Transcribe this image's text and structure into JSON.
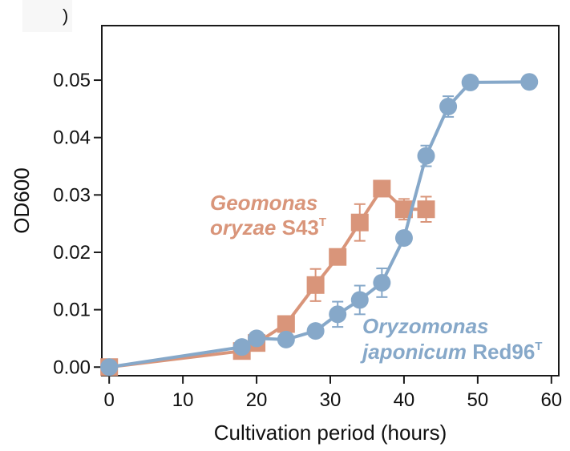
{
  "panel_label": ")",
  "chart_data": {
    "type": "line",
    "title": "",
    "xlabel": "Cultivation period (hours)",
    "ylabel": "OD600",
    "xlim": [
      -1,
      61
    ],
    "ylim": [
      -0.0015,
      0.0595
    ],
    "xticks": [
      0,
      10,
      20,
      30,
      40,
      50,
      60
    ],
    "xtick_labels": [
      "0",
      "10",
      "20",
      "30",
      "40",
      "50",
      "60"
    ],
    "yticks": [
      0.0,
      0.01,
      0.02,
      0.03,
      0.04,
      0.05
    ],
    "ytick_labels": [
      "0.00",
      "0.01",
      "0.02",
      "0.03",
      "0.04",
      "0.05"
    ],
    "grid": false,
    "series": [
      {
        "name": "Geomonas oryzae S43T",
        "label_lines": [
          {
            "italic": "Geomonas",
            "upright": "",
            "sup": ""
          },
          {
            "italic": "oryzae",
            "upright": "S43",
            "sup": "T"
          }
        ],
        "label_placement": "center-left",
        "color": "#d9957a",
        "marker": "square",
        "x": [
          0,
          18,
          20,
          24,
          28,
          31,
          34,
          37,
          40,
          43
        ],
        "y": [
          0.0,
          0.0028,
          0.0042,
          0.0075,
          0.0143,
          0.0192,
          0.0252,
          0.0311,
          0.0275,
          0.0275
        ],
        "error": [
          0.0,
          0.0,
          0.0,
          0.0,
          0.0028,
          0.0,
          0.0032,
          0.0,
          0.0018,
          0.0022
        ]
      },
      {
        "name": "Oryzomonas japonicum Red96T",
        "label_lines": [
          {
            "italic": "Oryzomonas",
            "upright": "",
            "sup": ""
          },
          {
            "italic": "japonicum",
            "upright": "Red96",
            "sup": "T"
          }
        ],
        "label_placement": "lower-right",
        "color": "#86a8c9",
        "marker": "circle",
        "x": [
          0,
          18,
          20,
          24,
          28,
          31,
          34,
          37,
          40,
          43,
          46,
          49,
          57
        ],
        "y": [
          0.0,
          0.0035,
          0.005,
          0.0048,
          0.0063,
          0.0092,
          0.0117,
          0.0147,
          0.0225,
          0.0368,
          0.0454,
          0.0496,
          0.0497
        ],
        "error": [
          0.0,
          0.0,
          0.0,
          0.0,
          0.0,
          0.0022,
          0.0025,
          0.0025,
          0.0,
          0.0018,
          0.0018,
          0.0,
          0.0
        ]
      }
    ]
  }
}
